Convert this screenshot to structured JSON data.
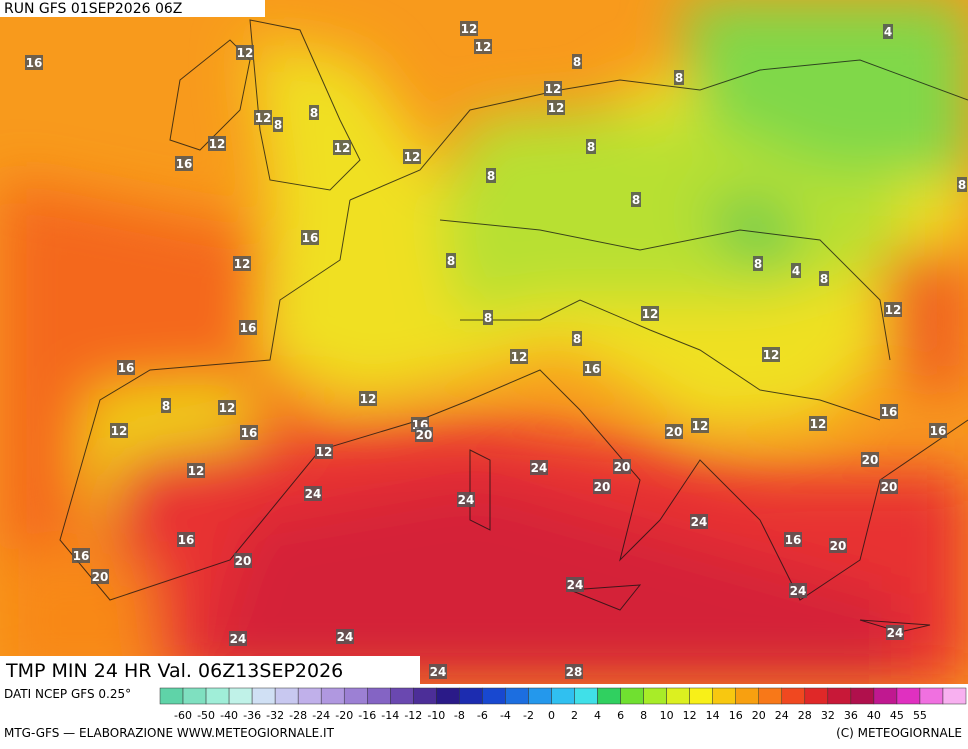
{
  "header": {
    "run": "RUN GFS 01SEP2026 06Z",
    "title": "TMP MIN 24 HR Val. 06Z13SEP2026"
  },
  "contour_labels": [
    16,
    12,
    12,
    12,
    8,
    12,
    12,
    8,
    4,
    12,
    8,
    8,
    12,
    12,
    12,
    16,
    8,
    8,
    8,
    8,
    16,
    12,
    8,
    8,
    4,
    8,
    12,
    16,
    8,
    12,
    8,
    12,
    12,
    16,
    16,
    8,
    12,
    12,
    16,
    20,
    16,
    12,
    20,
    12,
    12,
    16,
    16,
    12,
    12,
    24,
    20,
    20,
    24,
    20,
    24,
    24,
    20,
    16,
    16,
    20,
    16,
    20,
    20,
    24,
    24,
    24,
    24,
    24,
    24,
    28
  ],
  "legend": {
    "source": "DATI NCEP GFS 0.25°",
    "colors": [
      "#5fd3a8",
      "#7fe0c0",
      "#a0eed8",
      "#c0f2e8",
      "#d0e0f4",
      "#c8c8f0",
      "#c0b0ea",
      "#b098e0",
      "#9c80d4",
      "#8464c4",
      "#6a48b0",
      "#4c2e98",
      "#2a1a88",
      "#1c2cb0",
      "#1848d0",
      "#1c6ee0",
      "#2498ec",
      "#30c0f0",
      "#40e0e8",
      "#30d060",
      "#70e030",
      "#a8ec28",
      "#dcf020",
      "#f8f018",
      "#f8c810",
      "#f8a010",
      "#f87818",
      "#f04820",
      "#e02828",
      "#c81838",
      "#b0104c",
      "#c01890",
      "#e030c0",
      "#f070e0",
      "#f8b0f0"
    ],
    "ticks": [
      "-60",
      "-50",
      "-40",
      "-36",
      "-32",
      "-28",
      "-24",
      "-20",
      "-16",
      "-14",
      "-12",
      "-10",
      "-8",
      "-6",
      "-4",
      "-2",
      "0",
      "2",
      "4",
      "6",
      "8",
      "10",
      "12",
      "14",
      "16",
      "20",
      "24",
      "28",
      "32",
      "36",
      "40",
      "45",
      "55"
    ]
  },
  "footer": {
    "credit": "MTG-GFS — ELABORAZIONE WWW.METEOGIORNALE.IT",
    "copyright": "(C) METEOGIORNALE"
  }
}
